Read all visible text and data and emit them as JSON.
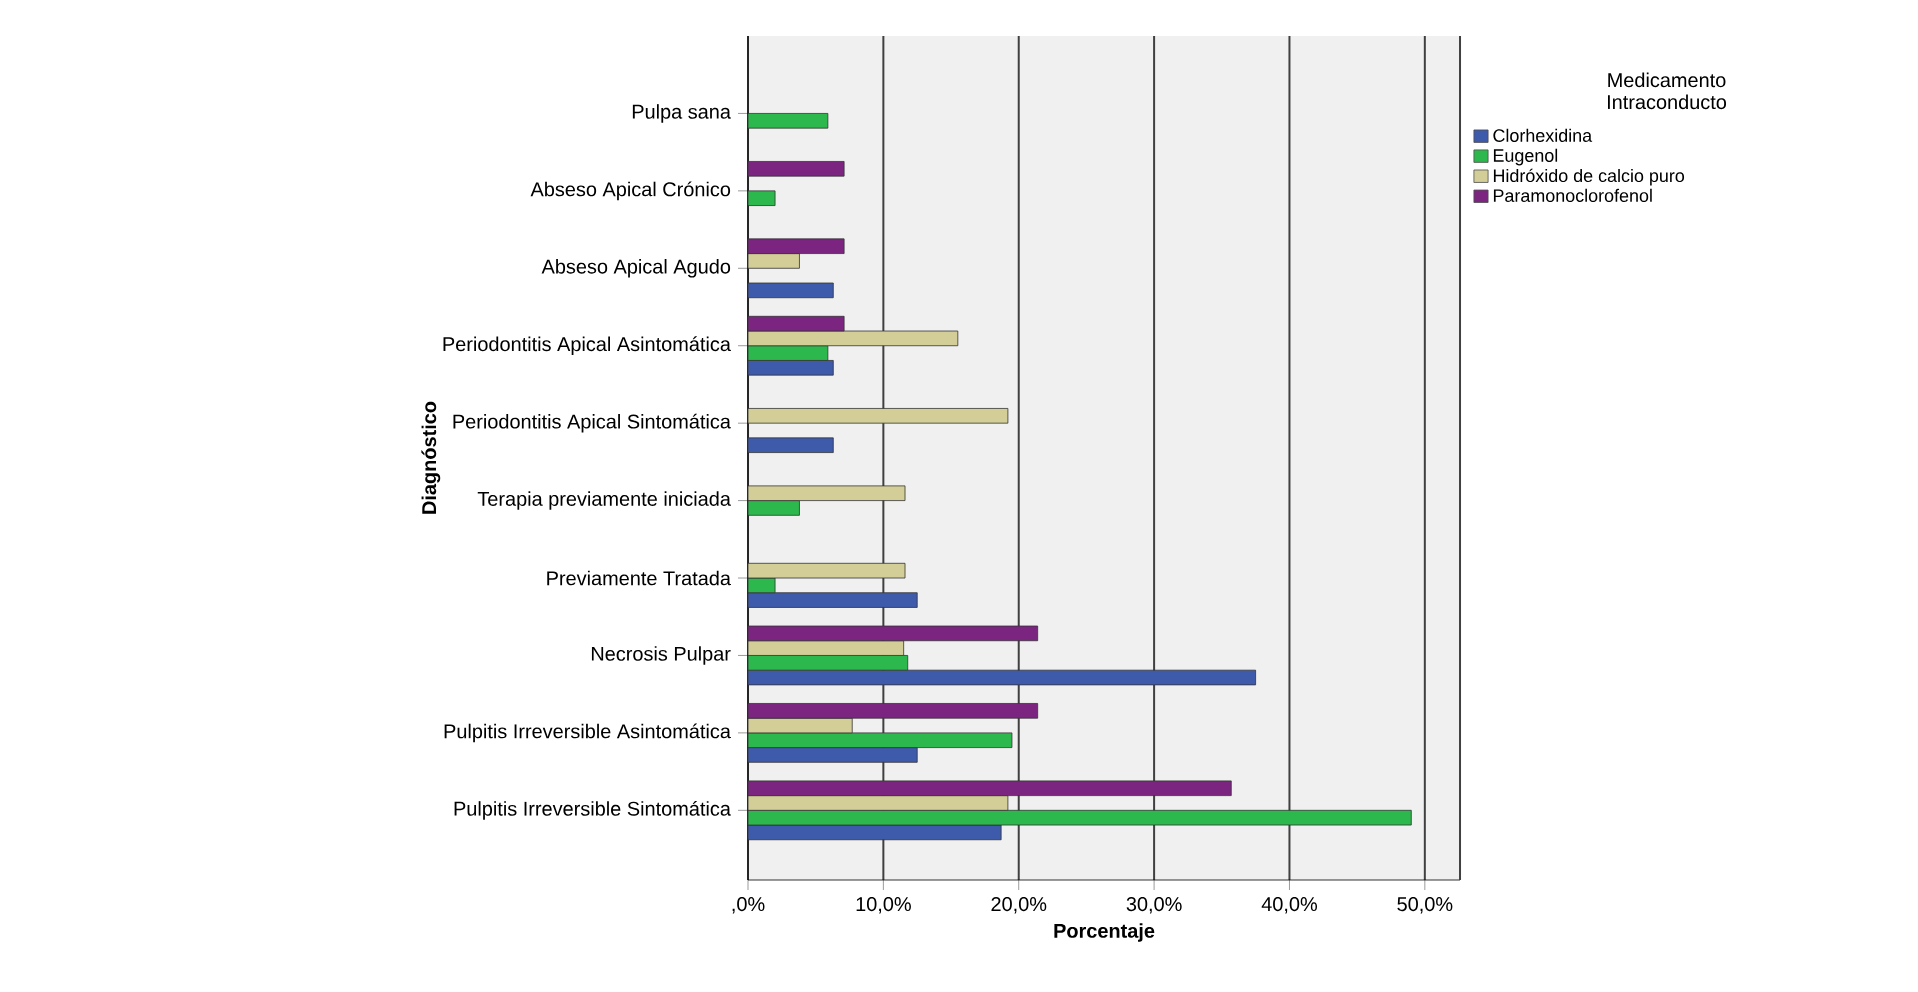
{
  "chart_data": {
    "type": "bar",
    "orientation": "horizontal",
    "xlabel": "Porcentaje",
    "ylabel": "Diagnóstico",
    "legend_title": "Medicamento Intraconducto",
    "categories": [
      "Pulpa sana",
      "Abseso Apical Crónico",
      "Abseso Apical Agudo",
      "Periodontitis Apical Asintomática",
      "Periodontitis Apical Sintomática",
      "Terapia previamente iniciada",
      "Previamente Tratada",
      "Necrosis Pulpar",
      "Pulpitis Irreversible Asintomática",
      "Pulpitis Irreversible Sintomática"
    ],
    "series": [
      {
        "name": "Clorhexidina",
        "color": "#3e5aab",
        "values": [
          null,
          null,
          6.3,
          6.3,
          6.3,
          null,
          12.5,
          37.5,
          12.5,
          18.7
        ]
      },
      {
        "name": "Eugenol",
        "color": "#2db84d",
        "values": [
          5.9,
          2.0,
          null,
          5.9,
          null,
          3.8,
          2.0,
          11.8,
          19.5,
          49.0
        ]
      },
      {
        "name": "Hidróxido de calcio puro",
        "color": "#d3ce97",
        "values": [
          null,
          null,
          3.8,
          15.5,
          19.2,
          11.6,
          11.6,
          11.5,
          7.7,
          19.2
        ]
      },
      {
        "name": "Paramonoclorofenol",
        "color": "#7b2580",
        "values": [
          null,
          7.1,
          7.1,
          7.1,
          null,
          null,
          null,
          21.4,
          21.4,
          35.7
        ]
      }
    ],
    "xlim": [
      0,
      52.6
    ],
    "xticks": [
      {
        "value": 0,
        "label": ",0%"
      },
      {
        "value": 10,
        "label": "10,0%"
      },
      {
        "value": 20,
        "label": "20,0%"
      },
      {
        "value": 30,
        "label": "30,0%"
      },
      {
        "value": 40,
        "label": "40,0%"
      },
      {
        "value": 50,
        "label": "50,0%"
      }
    ],
    "grid": "x",
    "legend": "top right"
  }
}
